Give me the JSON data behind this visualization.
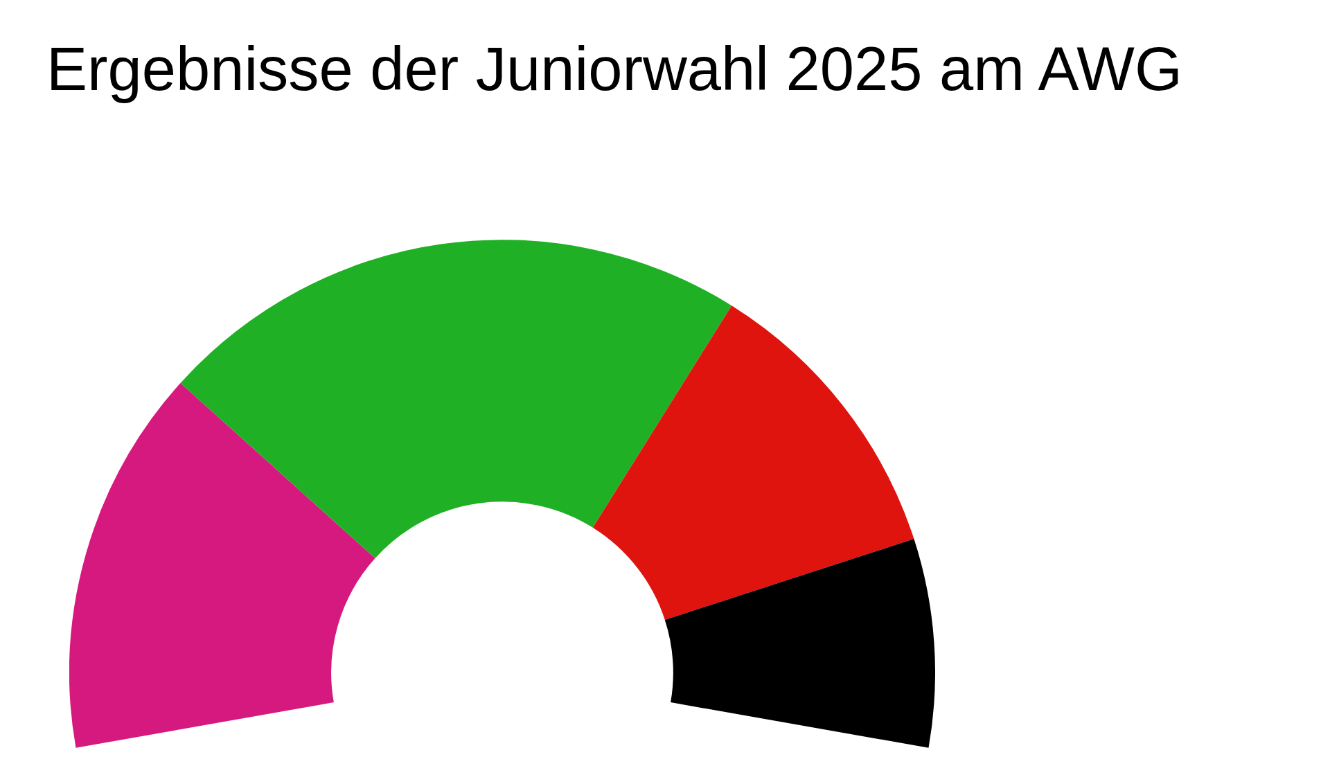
{
  "chart_data": {
    "type": "donut",
    "title": "Ergebnisse der Juniorwahl 2025 am AWG",
    "categories": [
      null,
      null,
      null,
      null
    ],
    "values": [
      26,
      40,
      20,
      14
    ],
    "colors": [
      "#d6197e",
      "#20b025",
      "#e0140f",
      "#000000"
    ]
  }
}
